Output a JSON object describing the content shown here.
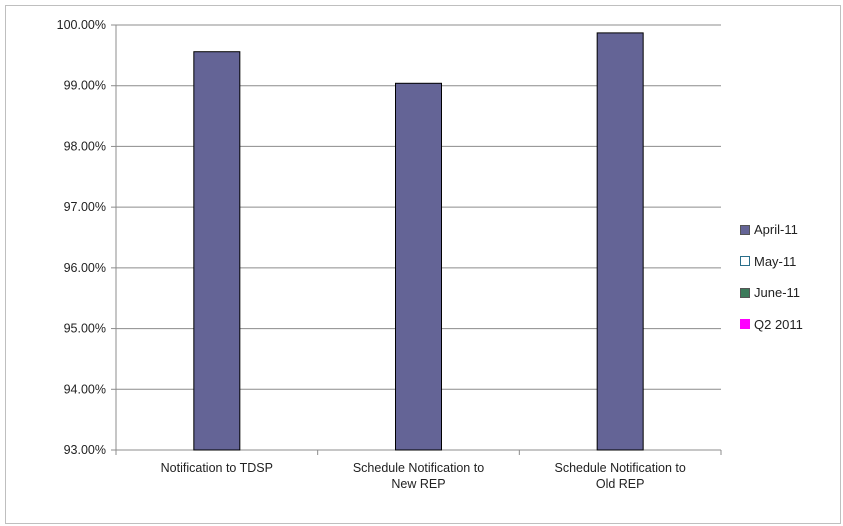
{
  "chart_data": {
    "type": "bar",
    "categories": [
      [
        "Notification to TDSP"
      ],
      [
        "Schedule Notification to",
        "New REP"
      ],
      [
        "Schedule Notification to",
        "Old REP"
      ]
    ],
    "series": [
      {
        "name": "April-11",
        "color": "#646496",
        "values": [
          99.56,
          99.04,
          99.87
        ]
      },
      {
        "name": "May-11",
        "color": "#ffffff",
        "values": [
          null,
          null,
          null
        ]
      },
      {
        "name": "June-11",
        "color": "#3c7a5a",
        "values": [
          null,
          null,
          null
        ]
      },
      {
        "name": "Q2 2011",
        "color": "#ff00ff",
        "values": [
          null,
          null,
          null
        ]
      }
    ],
    "ylim": [
      93,
      100
    ],
    "yticks": [
      "93.00%",
      "94.00%",
      "95.00%",
      "96.00%",
      "97.00%",
      "98.00%",
      "99.00%",
      "100.00%"
    ],
    "grid": true,
    "legend_position": "right"
  }
}
